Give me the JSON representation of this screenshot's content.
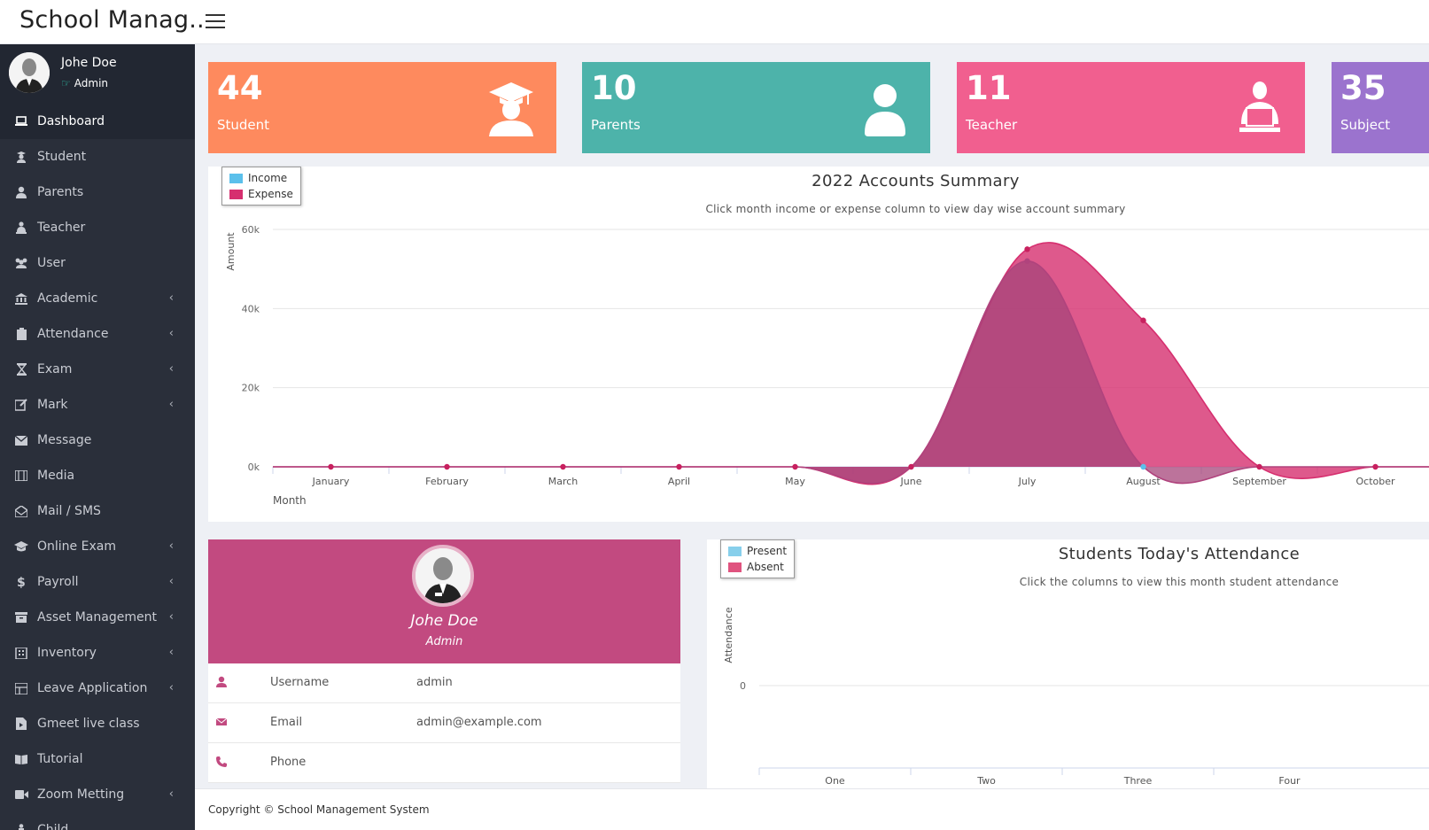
{
  "header": {
    "brand": "School Manag..",
    "menu_icon": "hamburger-icon"
  },
  "user": {
    "name": "Johe Doe",
    "role": "Admin"
  },
  "sidebar": {
    "items": [
      {
        "label": "Dashboard",
        "icon": "laptop-icon",
        "active": true,
        "has_children": false
      },
      {
        "label": "Student",
        "icon": "student-icon",
        "has_children": false
      },
      {
        "label": "Parents",
        "icon": "user-icon",
        "has_children": false
      },
      {
        "label": "Teacher",
        "icon": "teacher-icon",
        "has_children": false
      },
      {
        "label": "User",
        "icon": "users-icon",
        "has_children": false
      },
      {
        "label": "Academic",
        "icon": "bank-icon",
        "has_children": true
      },
      {
        "label": "Attendance",
        "icon": "clipboard-icon",
        "has_children": true
      },
      {
        "label": "Exam",
        "icon": "hourglass-icon",
        "has_children": true
      },
      {
        "label": "Mark",
        "icon": "edit-icon",
        "has_children": true
      },
      {
        "label": "Message",
        "icon": "envelope-icon",
        "has_children": false
      },
      {
        "label": "Media",
        "icon": "film-icon",
        "has_children": false
      },
      {
        "label": "Mail / SMS",
        "icon": "envelope-open-icon",
        "has_children": false
      },
      {
        "label": "Online Exam",
        "icon": "graduation-cap-icon",
        "has_children": true
      },
      {
        "label": "Payroll",
        "icon": "dollar-icon",
        "has_children": true
      },
      {
        "label": "Asset Management",
        "icon": "archive-icon",
        "has_children": true
      },
      {
        "label": "Inventory",
        "icon": "building-icon",
        "has_children": true
      },
      {
        "label": "Leave Application",
        "icon": "table-icon",
        "has_children": true
      },
      {
        "label": "Gmeet live class",
        "icon": "file-video-icon",
        "has_children": false
      },
      {
        "label": "Tutorial",
        "icon": "book-icon",
        "has_children": false
      },
      {
        "label": "Zoom Metting",
        "icon": "video-icon",
        "has_children": true
      },
      {
        "label": "Child",
        "icon": "child-icon",
        "has_children": false
      }
    ]
  },
  "stats": [
    {
      "value": "44",
      "label": "Student",
      "color": "#fe8a5e",
      "icon": "graduate-icon"
    },
    {
      "value": "10",
      "label": "Parents",
      "color": "#4db3aa",
      "icon": "user-icon"
    },
    {
      "value": "11",
      "label": "Teacher",
      "color": "#f15f8f",
      "icon": "teacher-laptop-icon"
    },
    {
      "value": "35",
      "label": "Subject",
      "color": "#9b73ce",
      "icon": "book-icon"
    }
  ],
  "accounts_chart": {
    "legend": {
      "income": "Income",
      "expense": "Expense"
    },
    "colors": {
      "income": "#5bc0eb",
      "expense": "#d62f6f",
      "combined": "#c24a80"
    }
  },
  "attendance_chart": {
    "legend": {
      "present": "Present",
      "absent": "Absent"
    },
    "colors": {
      "present": "#87cfeb",
      "absent": "#e0537f"
    }
  },
  "chart_data": [
    {
      "type": "area",
      "title": "2022 Accounts Summary",
      "subtitle": "Click month income or expense column to view day wise account summary",
      "xlabel": "Month",
      "ylabel": "Amount",
      "categories": [
        "January",
        "February",
        "March",
        "April",
        "May",
        "June",
        "July",
        "August",
        "September",
        "October"
      ],
      "y_ticks": [
        "0k",
        "20k",
        "40k",
        "60k"
      ],
      "ylim": [
        0,
        60000
      ],
      "legend_position": "top-left",
      "series": [
        {
          "name": "Income",
          "values": [
            0,
            0,
            0,
            0,
            0,
            0,
            52000,
            0,
            0,
            0
          ]
        },
        {
          "name": "Expense",
          "values": [
            0,
            0,
            0,
            0,
            0,
            0,
            55000,
            37000,
            0,
            0
          ]
        }
      ]
    },
    {
      "type": "bar",
      "title": "Students Today's Attendance",
      "subtitle": "Click the columns to view this month student attendance",
      "ylabel": "Attendance",
      "categories": [
        "One",
        "Two",
        "Three",
        "Four"
      ],
      "y_ticks": [
        "0"
      ],
      "legend_position": "top-left",
      "series": [
        {
          "name": "Present",
          "values": [
            0,
            0,
            0,
            0
          ]
        },
        {
          "name": "Absent",
          "values": [
            0,
            0,
            0,
            0
          ]
        }
      ]
    }
  ],
  "profile": {
    "name": "Johe Doe",
    "role": "Admin",
    "rows": [
      {
        "key": "Username",
        "value": "admin",
        "icon": "user-icon"
      },
      {
        "key": "Email",
        "value": "admin@example.com",
        "icon": "envelope-icon"
      },
      {
        "key": "Phone",
        "value": "",
        "icon": "phone-icon"
      }
    ]
  },
  "footer": {
    "text": "Copyright © School Management System"
  }
}
